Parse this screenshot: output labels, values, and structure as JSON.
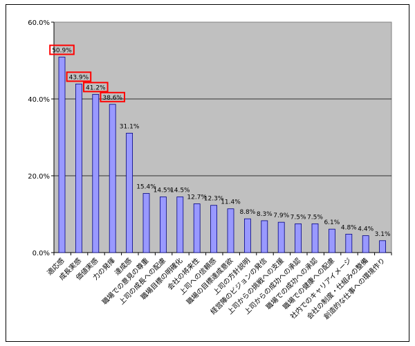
{
  "chart_data": {
    "type": "bar",
    "categories": [
      "適応感",
      "成長実感",
      "価値実感",
      "力の発揮",
      "達成感",
      "職場での意見の尊重",
      "上司の成長への配慮",
      "職場目標の明確化",
      "会社の将来性",
      "上司への信頼感",
      "職場の目標達成意欲",
      "上司の方針説明",
      "経営陣のビジョンの発信",
      "上司からの挑戦への支援",
      "上司からの成功への承認",
      "職場での成功への承認",
      "職場での健康への配慮",
      "社内でのキャリアイメージ",
      "会社の制度・仕組みの整備",
      "創造的な仕事への環境作り"
    ],
    "values": [
      50.9,
      43.9,
      41.2,
      38.6,
      31.1,
      15.4,
      14.5,
      14.5,
      12.7,
      12.3,
      11.4,
      8.8,
      8.3,
      7.9,
      7.5,
      7.5,
      6.1,
      4.8,
      4.4,
      3.1
    ],
    "data_labels": [
      "50.9%",
      "43.9%",
      "41.2%",
      "38.6%",
      "31.1%",
      "15.4%",
      "14.5%",
      "14.5%",
      "12.7%",
      "12.3%",
      "11.4%",
      "8.8%",
      "8.3%",
      "7.9%",
      "7.5%",
      "7.5%",
      "6.1%",
      "4.8%",
      "4.4%",
      "3.1%"
    ],
    "highlighted": [
      0,
      1,
      2,
      3
    ],
    "yticks": [
      "0.0%",
      "20.0%",
      "40.0%",
      "60.0%"
    ],
    "ytick_values": [
      0,
      20,
      40,
      60
    ],
    "ylim": [
      0,
      60
    ],
    "grid": true,
    "legend": "none",
    "colors": {
      "bar_fill": "#9999ff",
      "bar_stroke": "#000080",
      "plot_bg": "#c0c0c0",
      "highlight_box": "#ff0000",
      "gridline": "#000000"
    }
  }
}
